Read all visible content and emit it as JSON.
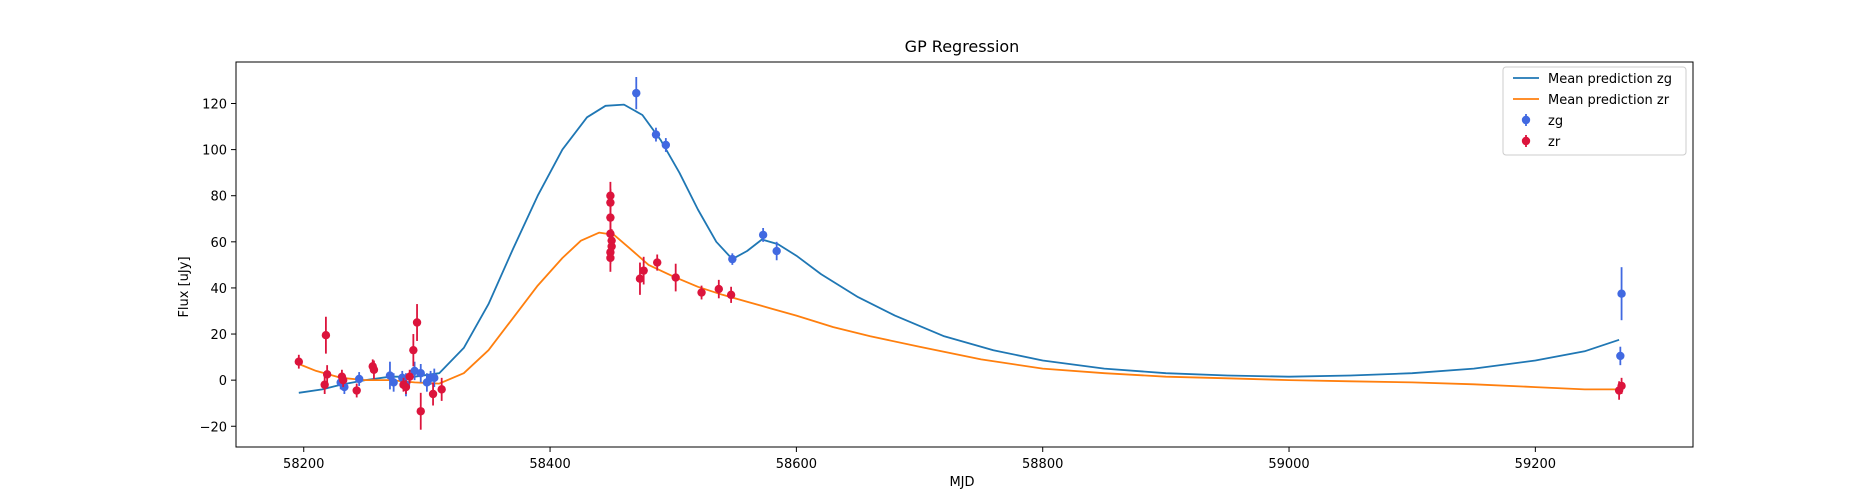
{
  "chart_data": {
    "type": "scatter",
    "title": "GP Regression",
    "xlabel": "MJD",
    "ylabel": "Flux [uJy]",
    "xlim": [
      58145,
      59328
    ],
    "ylim": [
      -29,
      138
    ],
    "xticks": [
      58200,
      58400,
      58600,
      58800,
      59000,
      59200
    ],
    "yticks": [
      -20,
      0,
      20,
      40,
      60,
      80,
      100,
      120
    ],
    "grid": false,
    "legend_position": "top-right",
    "lines": [
      {
        "name": "Mean prediction zg",
        "color": "#1f77b4",
        "x": [
          58196,
          58215,
          58230,
          58250,
          58270,
          58290,
          58310,
          58330,
          58350,
          58370,
          58390,
          58410,
          58430,
          58445,
          58460,
          58475,
          58490,
          58505,
          58520,
          58535,
          58548,
          58560,
          58572,
          58585,
          58600,
          58620,
          58650,
          58680,
          58720,
          58760,
          58800,
          58850,
          58900,
          58950,
          59000,
          59050,
          59100,
          59150,
          59200,
          59240,
          59268
        ],
        "y": [
          -5.5,
          -4,
          -2,
          0,
          1.5,
          1.5,
          3,
          14,
          33,
          57,
          80,
          100,
          114,
          119,
          119.5,
          115,
          104,
          90,
          74,
          60,
          52.5,
          56,
          61,
          59,
          54,
          46,
          36,
          28,
          19,
          13,
          8.5,
          5,
          3,
          2,
          1.5,
          2,
          3,
          5,
          8.5,
          12.5,
          17.5
        ]
      },
      {
        "name": "Mean prediction zr",
        "color": "#ff7f0e",
        "x": [
          58196,
          58210,
          58230,
          58250,
          58270,
          58290,
          58310,
          58330,
          58350,
          58370,
          58390,
          58410,
          58425,
          58440,
          58452,
          58465,
          58480,
          58500,
          58520,
          58540,
          58560,
          58580,
          58600,
          58630,
          58660,
          58700,
          58750,
          58800,
          58850,
          58900,
          58950,
          59000,
          59050,
          59100,
          59150,
          59200,
          59240,
          59268
        ],
        "y": [
          7,
          4,
          1,
          0,
          0,
          -1,
          -1.5,
          3,
          13,
          27,
          41,
          53,
          60.5,
          64,
          63,
          57,
          50,
          45,
          40.5,
          37,
          34,
          31,
          28,
          23,
          19,
          14.5,
          9,
          5,
          3,
          1.5,
          0.8,
          0,
          -0.5,
          -1,
          -1.8,
          -3,
          -4,
          -4
        ]
      }
    ],
    "series": [
      {
        "name": "zg",
        "color": "#4169e1",
        "points": [
          [
            58230,
            -1,
            3
          ],
          [
            58233,
            -3,
            3
          ],
          [
            58245,
            0.5,
            3
          ],
          [
            58270,
            2,
            6
          ],
          [
            58273,
            -1,
            4
          ],
          [
            58280,
            1,
            3
          ],
          [
            58283,
            -2,
            5
          ],
          [
            58290,
            4,
            4
          ],
          [
            58295,
            3,
            4
          ],
          [
            58300,
            -1,
            4
          ],
          [
            58303,
            1,
            3
          ],
          [
            58306,
            1,
            4
          ],
          [
            58470,
            124.5,
            7
          ],
          [
            58486,
            106.5,
            3
          ],
          [
            58494,
            102,
            3
          ],
          [
            58548,
            52.5,
            2.5
          ],
          [
            58573,
            63,
            3
          ],
          [
            58584,
            56,
            4
          ],
          [
            59270,
            37.5,
            11.5
          ],
          [
            59269,
            10.5,
            4
          ]
        ]
      },
      {
        "name": "zr",
        "color": "#dc143c",
        "points": [
          [
            58196,
            8,
            3
          ],
          [
            58217,
            -2,
            4
          ],
          [
            58218,
            19.5,
            8
          ],
          [
            58219,
            2.5,
            4
          ],
          [
            58231,
            1.5,
            3
          ],
          [
            58232,
            0,
            3
          ],
          [
            58243,
            -4.5,
            3
          ],
          [
            58256,
            6,
            3
          ],
          [
            58257,
            4.5,
            4
          ],
          [
            58281,
            -2,
            3
          ],
          [
            58283,
            -3,
            3
          ],
          [
            58286,
            1.5,
            3
          ],
          [
            58289,
            13,
            7
          ],
          [
            58292,
            25,
            8
          ],
          [
            58295,
            -13.5,
            8
          ],
          [
            58305,
            -6,
            5
          ],
          [
            58312,
            -4,
            5
          ],
          [
            58449,
            80,
            6
          ],
          [
            58449,
            77,
            6
          ],
          [
            58449,
            70.5,
            6
          ],
          [
            58449,
            63.5,
            6
          ],
          [
            58450,
            60.5,
            5
          ],
          [
            58450,
            58,
            5
          ],
          [
            58449,
            55.5,
            5
          ],
          [
            58449,
            53,
            6
          ],
          [
            58473,
            44,
            7
          ],
          [
            58476,
            47.5,
            6
          ],
          [
            58487,
            51,
            3.5
          ],
          [
            58502,
            44.5,
            6
          ],
          [
            58523,
            38,
            3
          ],
          [
            58537,
            39.5,
            4
          ],
          [
            58547,
            37,
            3.5
          ],
          [
            59268,
            -4.5,
            4
          ],
          [
            59270,
            -2.5,
            3.5
          ]
        ]
      }
    ],
    "legend": [
      "Mean prediction zg",
      "Mean prediction zr",
      "zg",
      "zr"
    ]
  }
}
